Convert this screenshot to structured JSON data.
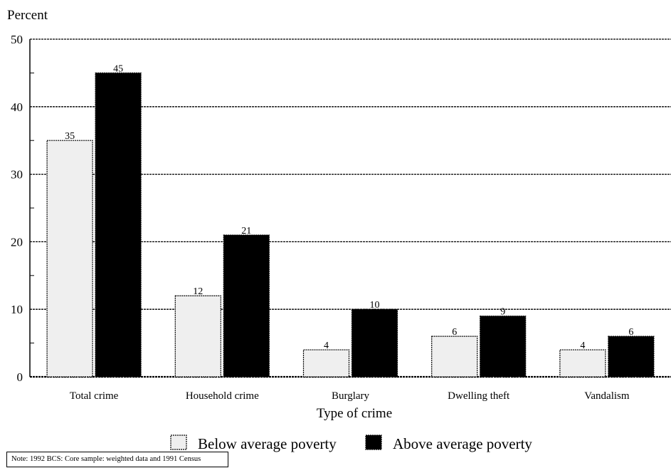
{
  "chart_data": {
    "type": "bar",
    "title": "",
    "ylabel": "Percent",
    "xlabel": "Type of crime",
    "ylim": [
      0,
      50
    ],
    "yticks": [
      0,
      10,
      20,
      30,
      40,
      50
    ],
    "grid": true,
    "legend_position": "bottom",
    "categories": [
      "Total crime",
      "Household crime",
      "Burglary",
      "Dwelling theft",
      "Vandalism"
    ],
    "series": [
      {
        "name": "Below average poverty",
        "values": [
          35,
          12,
          4,
          6,
          4
        ],
        "color": "#efefef"
      },
      {
        "name": "Above average poverty",
        "values": [
          45,
          21,
          10,
          9,
          6
        ],
        "color": "#000000"
      }
    ]
  },
  "note": "Note: 1992 BCS: Core sample: weighted data and 1991 Census"
}
